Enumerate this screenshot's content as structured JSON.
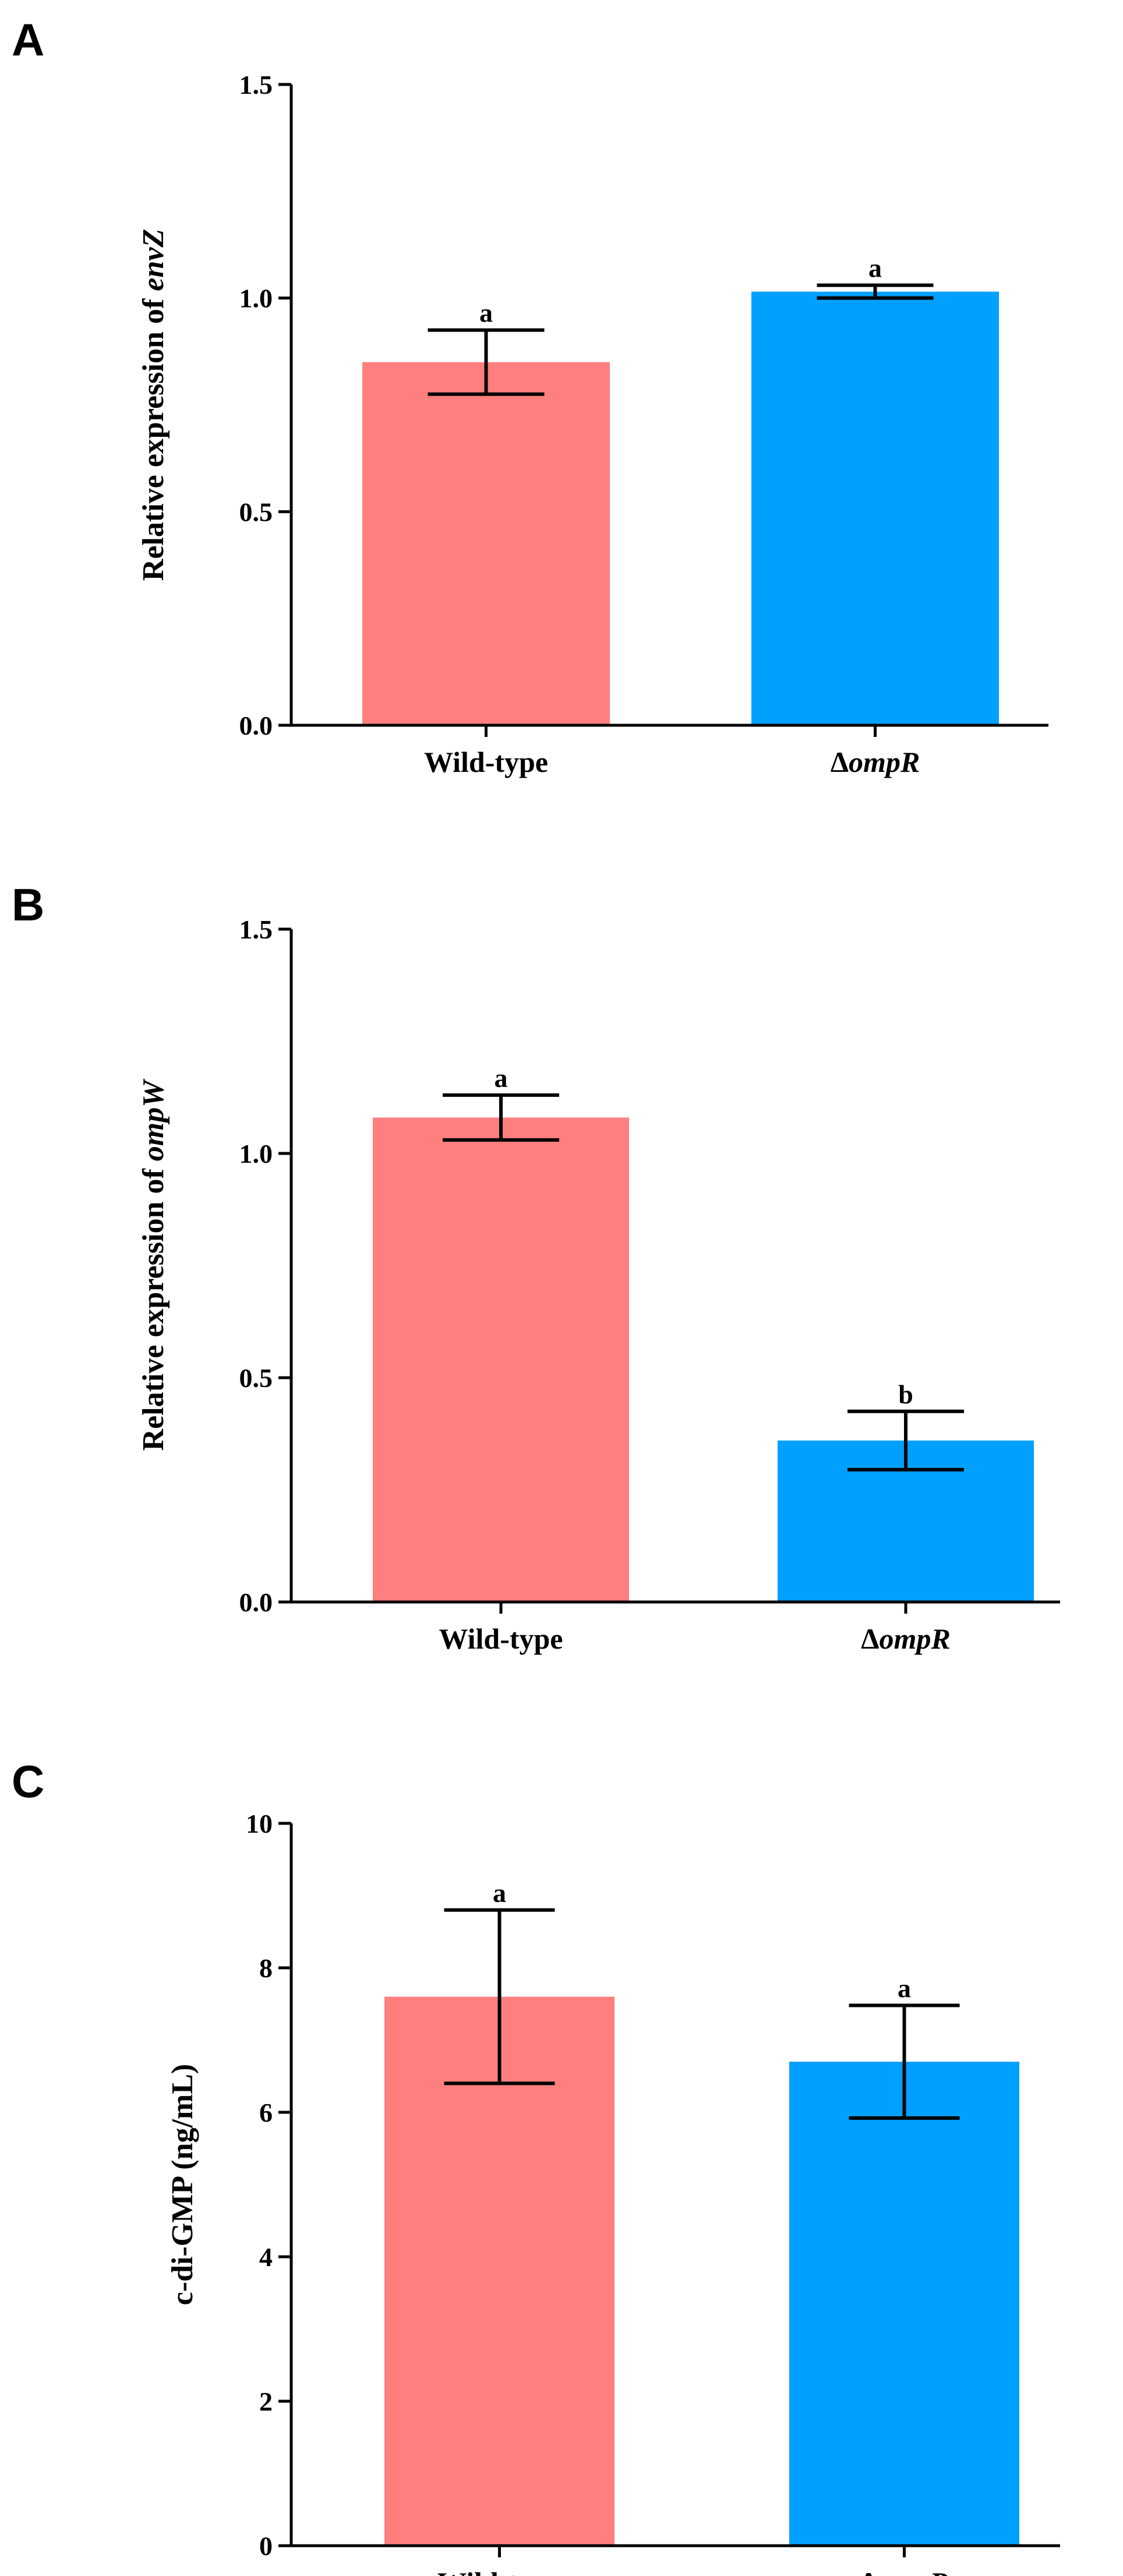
{
  "colors": {
    "wild_type": "#ff7f7f",
    "mutant": "#00a0ff",
    "axis": "#000000"
  },
  "chart_data": [
    {
      "panel": "A",
      "type": "bar",
      "ylabel_prefix": "Relative expression of ",
      "ylabel_gene": "envZ",
      "ylim": [
        0,
        1.5
      ],
      "yticks": [
        "0.0",
        "0.5",
        "1.0",
        "1.5"
      ],
      "ytick_values": [
        0,
        0.5,
        1.0,
        1.5
      ],
      "categories": [
        "Wild-type",
        "ompR"
      ],
      "values": [
        0.85,
        1.015
      ],
      "errors": [
        0.075,
        0.015
      ],
      "significance": [
        "a",
        "a"
      ]
    },
    {
      "panel": "B",
      "type": "bar",
      "ylabel_prefix": "Relative expression of ",
      "ylabel_gene": "ompW",
      "ylim": [
        0,
        1.5
      ],
      "yticks": [
        "0.0",
        "0.5",
        "1.0",
        "1.5"
      ],
      "ytick_values": [
        0,
        0.5,
        1.0,
        1.5
      ],
      "categories": [
        "Wild-type",
        "ompR"
      ],
      "values": [
        1.08,
        0.36
      ],
      "errors": [
        0.05,
        0.065
      ],
      "significance": [
        "a",
        "b"
      ]
    },
    {
      "panel": "C",
      "type": "bar",
      "ylabel_prefix": "c-di-GMP (ng/mL)",
      "ylabel_gene": "",
      "ylim": [
        0,
        10
      ],
      "yticks": [
        "0",
        "2",
        "4",
        "6",
        "8",
        "10"
      ],
      "ytick_values": [
        0,
        2,
        4,
        6,
        8,
        10
      ],
      "categories": [
        "Wild-type",
        "ompR"
      ],
      "values": [
        7.6,
        6.7
      ],
      "errors": [
        1.2,
        0.78
      ],
      "significance": [
        "a",
        "a"
      ]
    }
  ],
  "delta_symbol": "Δ"
}
